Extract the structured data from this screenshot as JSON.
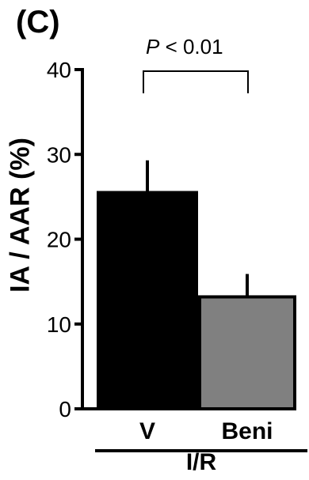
{
  "panel_label": "(C)",
  "significance": {
    "prefix": "P",
    "text": " < 0.01"
  },
  "group_label": "I/R",
  "chart_data": {
    "type": "bar",
    "ylabel": "IA / AAR (%)",
    "ylim": [
      0,
      40
    ],
    "yticks": [
      0,
      10,
      20,
      30,
      40
    ],
    "categories": [
      "V",
      "Beni"
    ],
    "values": [
      25.5,
      13.2
    ],
    "errors": [
      3.8,
      2.7
    ],
    "bar_colors": [
      "#000000",
      "#808080"
    ]
  }
}
